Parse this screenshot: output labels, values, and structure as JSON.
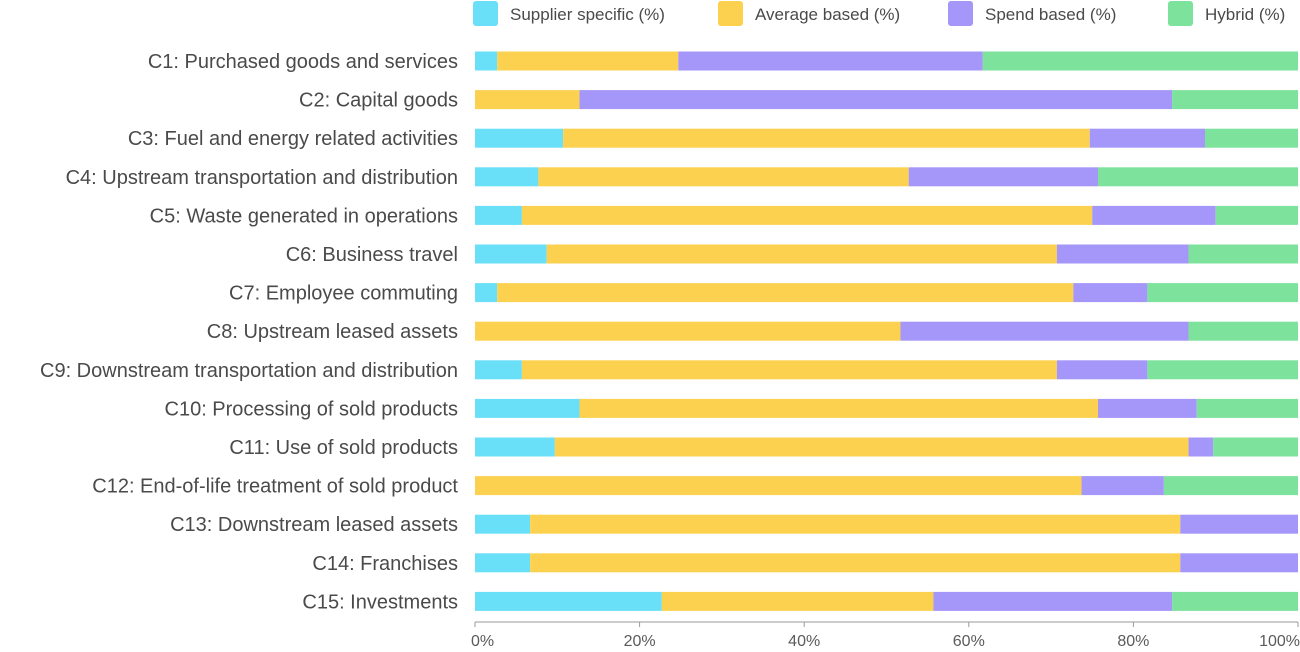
{
  "chart_data": {
    "type": "bar",
    "orientation": "horizontal",
    "stacked": true,
    "normalized": true,
    "title": "",
    "xlabel": "",
    "ylabel": "",
    "xlim": [
      0,
      100
    ],
    "xticks": [
      "0%",
      "20%",
      "40%",
      "60%",
      "80%",
      "100%"
    ],
    "legend_position": "top-right",
    "categories": [
      "C1: Purchased goods and services",
      "C2: Capital goods",
      "C3: Fuel and energy related activities",
      "C4: Upstream transportation and distribution",
      "C5: Waste generated in operations",
      "C6: Business travel",
      "C7: Employee commuting",
      "C8: Upstream leased assets",
      "C9: Downstream transportation and distribution",
      "C10: Processing of sold products",
      "C11: Use of sold products",
      "C12: End-of-life treatment of sold product",
      "C13: Downstream leased assets",
      "C14: Franchises",
      "C15: Investments"
    ],
    "series": [
      {
        "name": "Supplier specific (%)",
        "color": "#6adff8",
        "values": [
          2.7,
          0,
          10.7,
          7.7,
          5.7,
          8.7,
          2.7,
          0,
          5.7,
          12.7,
          9.7,
          0,
          6.7,
          6.7,
          22.7
        ]
      },
      {
        "name": "Average based (%)",
        "color": "#fdd150",
        "values": [
          22,
          12.7,
          64,
          45,
          69.3,
          62,
          70,
          51.7,
          65,
          63,
          77,
          73.7,
          79,
          79,
          33
        ]
      },
      {
        "name": "Spend based (%)",
        "color": "#a596fa",
        "values": [
          37,
          72,
          14,
          23,
          15,
          16,
          9,
          35,
          11,
          12,
          3,
          10,
          14.3,
          14.3,
          29
        ]
      },
      {
        "name": "Hybrid (%)",
        "color": "#7de29c",
        "values": [
          38.3,
          15.3,
          11.3,
          24.3,
          10,
          13.3,
          18.3,
          13.3,
          18.3,
          12.3,
          10.3,
          16.3,
          0,
          0,
          15.3
        ]
      }
    ]
  }
}
